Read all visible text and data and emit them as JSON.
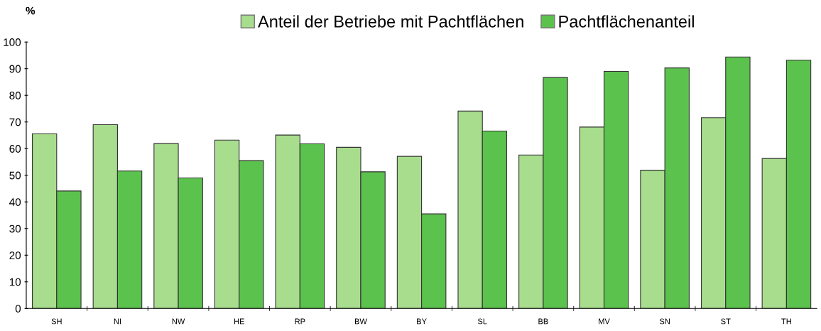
{
  "chart_data": {
    "type": "bar",
    "ylabel": "%",
    "categories": [
      "SH",
      "NI",
      "NW",
      "HE",
      "RP",
      "BW",
      "BY",
      "SL",
      "BB",
      "MV",
      "SN",
      "ST",
      "TH"
    ],
    "series": [
      {
        "name": "Anteil der Betriebe mit Pachtflächen",
        "color": "#a8dd8e",
        "values": [
          65.6,
          69,
          61.9,
          63.2,
          65.1,
          60.5,
          57.1,
          74.1,
          57.6,
          68.1,
          51.9,
          71.6,
          56.3
        ]
      },
      {
        "name": "Pachtflächenanteil",
        "color": "#5cc24e",
        "values": [
          44.1,
          51.6,
          49,
          55.5,
          61.8,
          51.3,
          35.5,
          66.6,
          86.7,
          89,
          90.3,
          94.4,
          93.2
        ]
      }
    ],
    "ylim": [
      0,
      100
    ],
    "yticks": [
      0,
      10,
      20,
      30,
      40,
      50,
      60,
      70,
      80,
      90,
      100
    ],
    "grid": false,
    "legend": "top"
  }
}
